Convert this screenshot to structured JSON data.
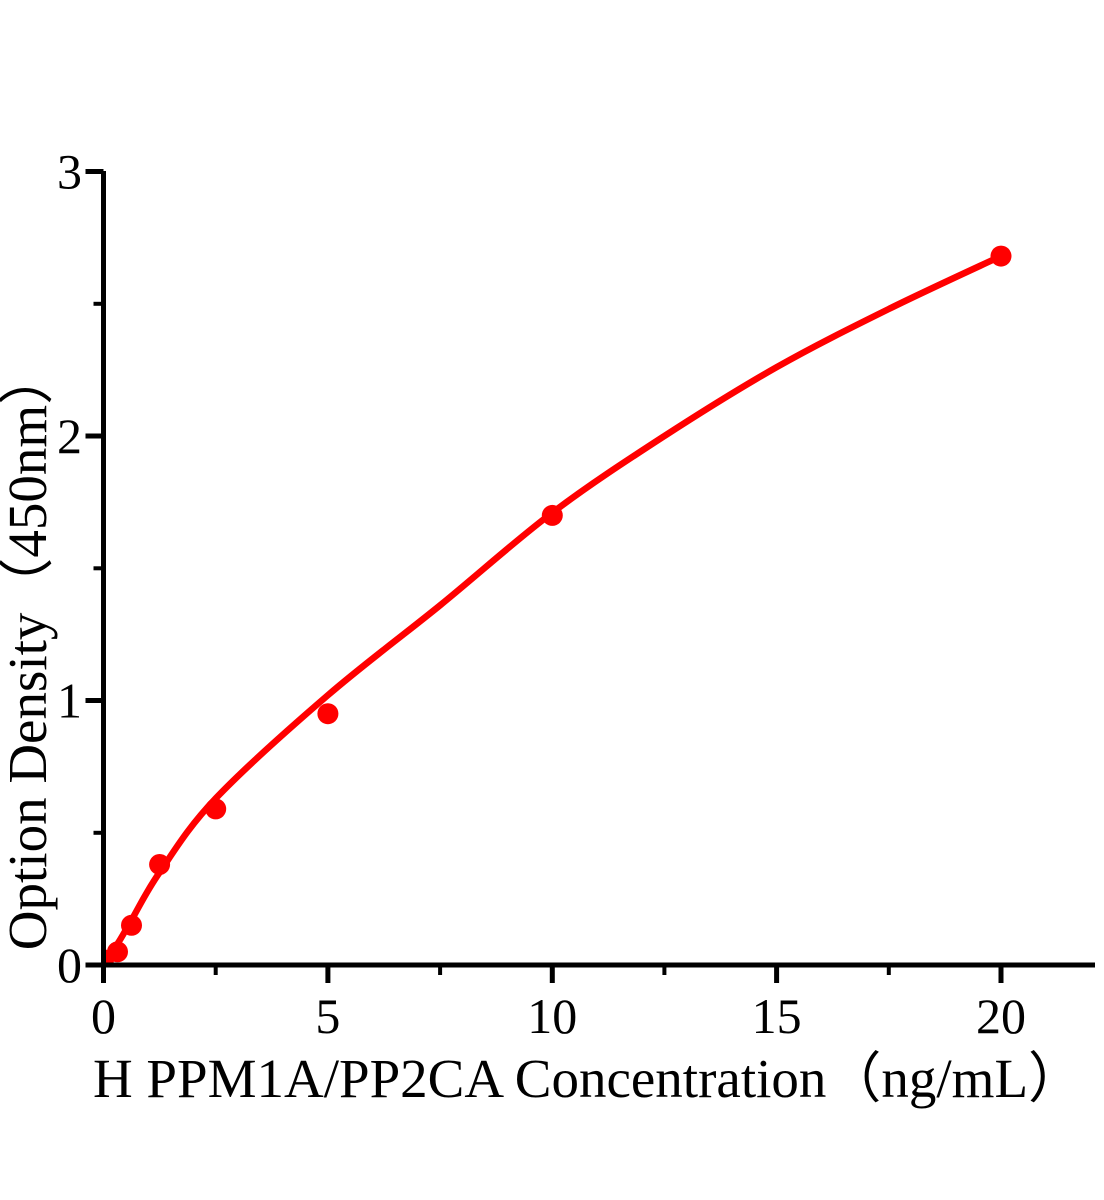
{
  "figure": {
    "background_color": "#ffffff",
    "axis_color": "#000000"
  },
  "chart_data": {
    "type": "scatter",
    "title": "",
    "xlabel": "H PPM1A/PP2CA Concentration（ng/mL）",
    "ylabel": "Option Density（450nm）",
    "xlim": [
      0,
      22.1
    ],
    "ylim": [
      0,
      3
    ],
    "grid": "off",
    "legend": "none",
    "marker_color": "#ff0000",
    "curve_color": "#ff0000",
    "x_ticks_major": {
      "values": [
        0,
        5,
        10,
        15,
        20
      ],
      "labels": [
        "0",
        "5",
        "10",
        "15",
        "20"
      ]
    },
    "x_ticks_minor": [
      2.5,
      7.5,
      12.5,
      17.5
    ],
    "y_ticks_major": {
      "values": [
        0,
        1,
        2,
        3
      ],
      "labels": [
        "0",
        "1",
        "2",
        "3"
      ]
    },
    "y_ticks_minor": [
      0.5,
      1.5,
      2.5
    ],
    "points": {
      "x": [
        0,
        0.3125,
        0.625,
        1.25,
        2.5,
        5,
        10,
        20
      ],
      "y": [
        0.02,
        0.05,
        0.15,
        0.38,
        0.59,
        0.95,
        1.7,
        2.68
      ]
    },
    "fit_curve": {
      "x": [
        0,
        0.3125,
        0.625,
        1.25,
        2.5,
        5,
        7.5,
        10,
        12.5,
        15,
        17.5,
        20
      ],
      "y": [
        0.01,
        0.08,
        0.17,
        0.35,
        0.63,
        1.02,
        1.36,
        1.71,
        2.0,
        2.26,
        2.48,
        2.68
      ]
    }
  }
}
